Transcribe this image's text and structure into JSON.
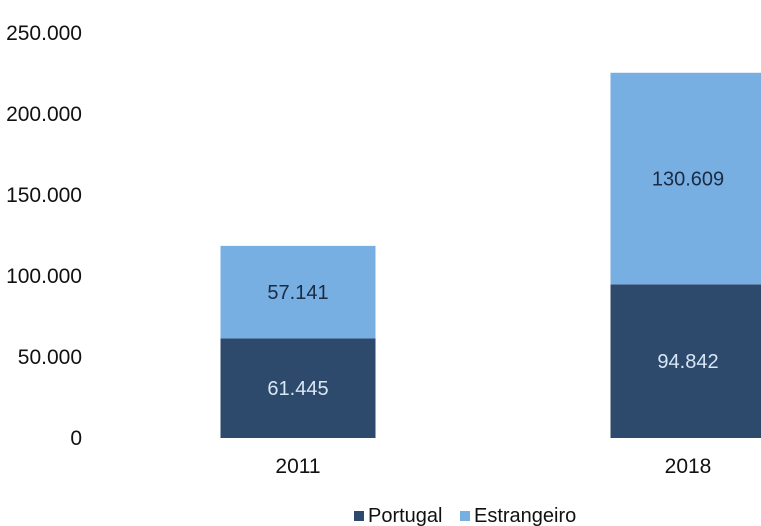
{
  "chart_data": {
    "type": "bar",
    "stacked": true,
    "categories": [
      "2011",
      "2018"
    ],
    "series": [
      {
        "name": "Portugal",
        "values": [
          61445,
          94842
        ],
        "labels": [
          "61.445",
          "94.842"
        ],
        "color": "#2d4a6d",
        "label_color": "#d9e6f5"
      },
      {
        "name": "Estrangeiro",
        "values": [
          57141,
          130609
        ],
        "labels": [
          "57.141",
          "130.609"
        ],
        "color": "#78afe3",
        "label_color": "#1a2b42"
      }
    ],
    "ylim": [
      0,
      250000
    ],
    "y_ticks": [
      "0",
      "50.000",
      "100.000",
      "150.000",
      "200.000",
      "250.000"
    ],
    "y_tick_values": [
      0,
      50000,
      100000,
      150000,
      200000,
      250000
    ],
    "legend_placement": "bottom-center",
    "grid": false
  }
}
